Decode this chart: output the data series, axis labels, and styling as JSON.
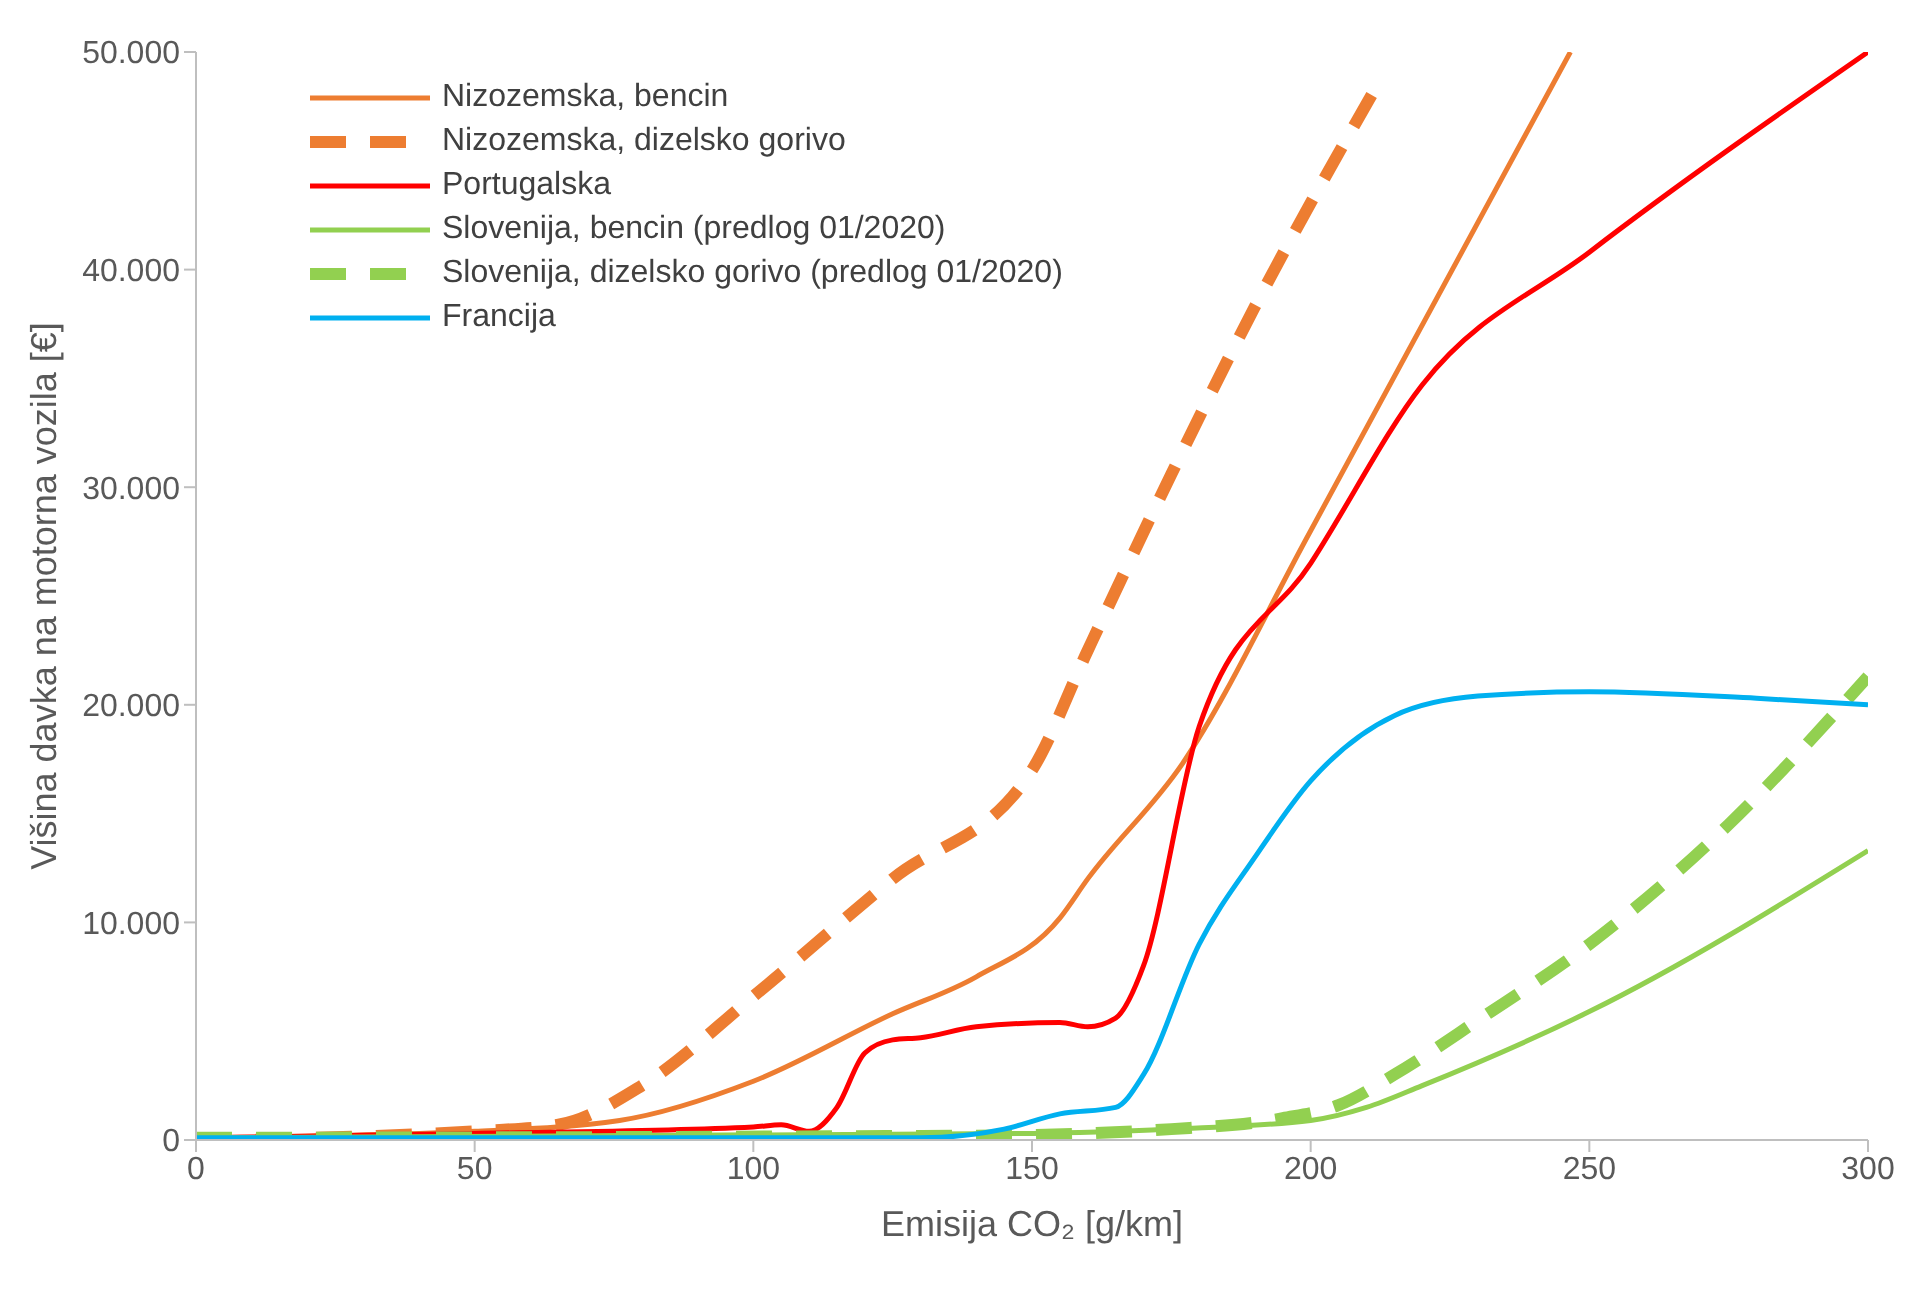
{
  "chart_data": {
    "type": "line",
    "xlabel": "Emisija CO₂ [g/km]",
    "ylabel": "Višina davka na motorna vozila [€]",
    "xlim": [
      0,
      300
    ],
    "xticks": [
      0,
      50,
      100,
      150,
      200,
      250,
      300
    ],
    "ylim": [
      0,
      50000
    ],
    "yticks": [
      {
        "value": 0,
        "label": "0"
      },
      {
        "value": 10000,
        "label": "10.000"
      },
      {
        "value": 20000,
        "label": "20.000"
      },
      {
        "value": 30000,
        "label": "30.000"
      },
      {
        "value": 40000,
        "label": "40.000"
      },
      {
        "value": 50000,
        "label": "50.000"
      }
    ],
    "grid": false,
    "legend": "top left",
    "marker": "none",
    "series": [
      {
        "name": "Nizozemska, bencin",
        "color": "#ed7d31",
        "line_style": "solid",
        "x": [
          0,
          50,
          76,
          100,
          125,
          140,
          155,
          160,
          177,
          200,
          246.6
        ],
        "values": [
          100,
          400,
          900,
          2700,
          5800,
          7500,
          10200,
          12000,
          17300,
          28000,
          50000
        ]
      },
      {
        "name": "Nizozemska, dizelsko gorivo",
        "color": "#ed7d31",
        "line_style": "dashed",
        "x": [
          0,
          50,
          65,
          80,
          100,
          125,
          150,
          160,
          175,
          190,
          212
        ],
        "values": [
          0,
          400,
          700,
          2500,
          6600,
          12000,
          17000,
          22500,
          30600,
          38300,
          48500
        ]
      },
      {
        "name": "Portugalska",
        "color": "#ff0000",
        "line_style": "solid",
        "x": [
          0,
          50,
          100,
          105,
          110,
          115,
          120,
          125,
          130,
          140,
          155,
          160,
          165,
          170,
          180,
          200,
          220,
          250,
          300
        ],
        "values": [
          100,
          300,
          600,
          700,
          400,
          1500,
          4000,
          4600,
          4700,
          5200,
          5400,
          5200,
          5600,
          8000,
          19000,
          26500,
          34700,
          40800,
          50000
        ]
      },
      {
        "name": "Slovenija, bencin (predlog 01/2020)",
        "color": "#92d050",
        "line_style": "solid",
        "x": [
          0,
          150,
          175,
          200,
          210,
          220,
          250,
          300
        ],
        "values": [
          100,
          300,
          500,
          900,
          1500,
          2500,
          5900,
          13300
        ]
      },
      {
        "name": "Slovenija, dizelsko gorivo  (predlog 01/2020)",
        "color": "#92d050",
        "line_style": "dashed",
        "x": [
          0,
          140,
          175,
          195,
          205,
          215,
          230,
          250,
          275,
          300
        ],
        "values": [
          100,
          200,
          500,
          1000,
          1600,
          3000,
          5500,
          9000,
          14500,
          21300
        ]
      },
      {
        "name": "Francija",
        "color": "#00b0f0",
        "line_style": "solid",
        "x": [
          0,
          130,
          145,
          155,
          165,
          170,
          180,
          190,
          200,
          215,
          230,
          250,
          280,
          300
        ],
        "values": [
          100,
          100,
          500,
          1200,
          1500,
          3000,
          9000,
          13000,
          16500,
          19500,
          20400,
          20600,
          20300,
          20000
        ]
      }
    ]
  }
}
